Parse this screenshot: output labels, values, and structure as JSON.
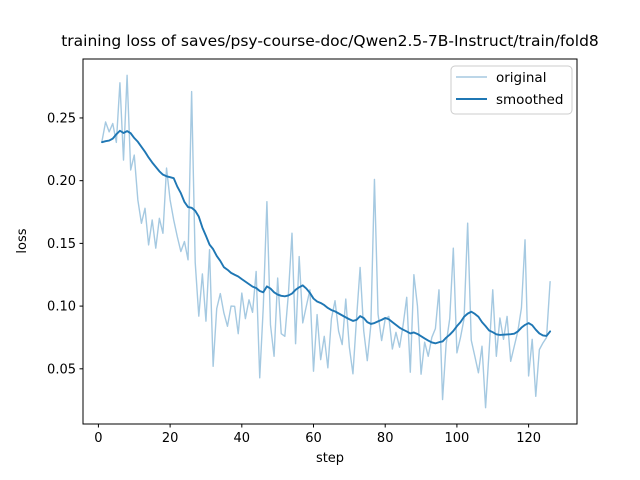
{
  "chart_data": {
    "type": "line",
    "title": "training loss of saves/psy-course-doc/Qwen2.5-7B-Instruct/train/fold8",
    "xlabel": "step",
    "ylabel": "loss",
    "xlim": [
      -4.3,
      133.5
    ],
    "ylim": [
      0.006,
      0.297
    ],
    "xticks": [
      0,
      20,
      40,
      60,
      80,
      100,
      120
    ],
    "yticks": [
      0.05,
      0.1,
      0.15,
      0.2,
      0.25
    ],
    "grid": false,
    "legend_position": "upper right",
    "series": [
      {
        "name": "original",
        "color": "#a5c9e1",
        "linewidth": 1.4,
        "x_start": 1,
        "x_step": 1,
        "values": [
          0.2315,
          0.2468,
          0.2389,
          0.2456,
          0.2305,
          0.278,
          0.2164,
          0.284,
          0.2085,
          0.2204,
          0.1846,
          0.166,
          0.178,
          0.1488,
          0.1687,
          0.1462,
          0.17,
          0.158,
          0.21,
          0.1846,
          0.1687,
          0.1554,
          0.1435,
          0.1515,
          0.1369,
          0.271,
          0.1348,
          0.092,
          0.1256,
          0.088,
          0.145,
          0.052,
          0.098,
          0.11,
          0.0945,
          0.0839,
          0.1,
          0.0998,
          0.078,
          0.1104,
          0.09,
          0.105,
          0.095,
          0.1276,
          0.0428,
          0.1,
          0.1832,
          0.085,
          0.06,
          0.1223,
          0.078,
          0.0759,
          0.11,
          0.1581,
          0.07,
          0.1395,
          0.0866,
          0.1,
          0.113,
          0.0481,
          0.0932,
          0.0573,
          0.0759,
          0.0508,
          0.09,
          0.1043,
          0.08,
          0.0693,
          0.1056,
          0.0672,
          0.046,
          0.09,
          0.1308,
          0.0804,
          0.0565,
          0.085,
          0.201,
          0.0937,
          0.0725,
          0.0897,
          0.0918,
          0.0658,
          0.0791,
          0.0672,
          0.085,
          0.107,
          0.0473,
          0.125,
          0.1,
          0.0457,
          0.0712,
          0.06,
          0.075,
          0.082,
          0.113,
          0.0255,
          0.07,
          0.09,
          0.1462,
          0.0627,
          0.075,
          0.09,
          0.1661,
          0.0728,
          0.06,
          0.0468,
          0.068,
          0.019,
          0.065,
          0.113,
          0.06,
          0.0905,
          0.0735,
          0.0918,
          0.056,
          0.068,
          0.08,
          0.0985,
          0.1528,
          0.0443,
          0.0735,
          0.0281,
          0.0653,
          0.0706,
          0.075,
          0.1194
        ]
      },
      {
        "name": "smoothed",
        "color": "#1f77b4",
        "linewidth": 1.9,
        "x_start": 1,
        "x_step": 1,
        "values": [
          0.2307,
          0.2315,
          0.232,
          0.2335,
          0.237,
          0.2398,
          0.238,
          0.2395,
          0.2378,
          0.234,
          0.231,
          0.227,
          0.223,
          0.2185,
          0.2145,
          0.211,
          0.2075,
          0.2048,
          0.2035,
          0.2028,
          0.202,
          0.1953,
          0.19,
          0.183,
          0.179,
          0.1784,
          0.176,
          0.1713,
          0.1626,
          0.156,
          0.149,
          0.1454,
          0.14,
          0.136,
          0.131,
          0.129,
          0.1265,
          0.125,
          0.1236,
          0.1215,
          0.1195,
          0.1175,
          0.1155,
          0.1144,
          0.112,
          0.111,
          0.1157,
          0.114,
          0.111,
          0.1092,
          0.1082,
          0.1078,
          0.1085,
          0.11,
          0.113,
          0.115,
          0.1165,
          0.114,
          0.1105,
          0.106,
          0.1037,
          0.1025,
          0.1008,
          0.0985,
          0.0968,
          0.0958,
          0.0942,
          0.0926,
          0.091,
          0.0895,
          0.0882,
          0.089,
          0.092,
          0.0905,
          0.0872,
          0.0858,
          0.0865,
          0.0878,
          0.089,
          0.0905,
          0.0895,
          0.0872,
          0.085,
          0.0828,
          0.0812,
          0.0798,
          0.0782,
          0.079,
          0.0778,
          0.076,
          0.0742,
          0.0725,
          0.071,
          0.0703,
          0.0712,
          0.0718,
          0.0748,
          0.0772,
          0.0802,
          0.084,
          0.0872,
          0.0915,
          0.094,
          0.0955,
          0.0938,
          0.0915,
          0.0872,
          0.084,
          0.0805,
          0.0792,
          0.0775,
          0.077,
          0.0772,
          0.0774,
          0.0776,
          0.078,
          0.0798,
          0.0828,
          0.085,
          0.0865,
          0.0848,
          0.0812,
          0.0782,
          0.0766,
          0.0762,
          0.0798
        ]
      }
    ],
    "frame_color": "#000000",
    "legend_border_color": "#cccccc",
    "background_color": "#ffffff"
  }
}
